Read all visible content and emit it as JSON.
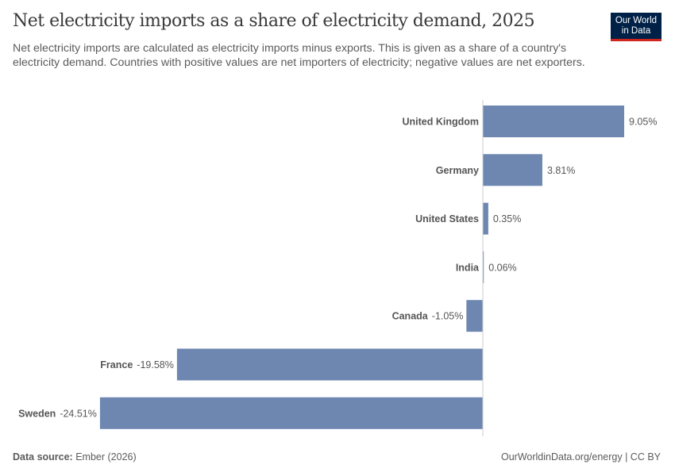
{
  "header": {
    "title": "Net electricity imports as a share of electricity demand, 2025",
    "subtitle": "Net electricity imports are calculated as electricity imports minus exports. This is given as a share of a country's electricity demand. Countries with positive values are net importers of electricity; negative values are net exporters.",
    "logo_line1": "Our World",
    "logo_line2": "in Data"
  },
  "chart_data": {
    "type": "bar",
    "orientation": "horizontal",
    "categories": [
      "United Kingdom",
      "Germany",
      "United States",
      "India",
      "Canada",
      "France",
      "Sweden"
    ],
    "values": [
      9.05,
      3.81,
      0.35,
      0.06,
      -1.05,
      -19.58,
      -24.51
    ],
    "value_labels": [
      "9.05%",
      "3.81%",
      "0.35%",
      "0.06%",
      "-1.05%",
      "-19.58%",
      "-24.51%"
    ],
    "unit": "%",
    "bar_color": "#6d87b1",
    "grid": false
  },
  "footer": {
    "source_label": "Data source:",
    "source_value": "Ember (2026)",
    "url": "OurWorldinData.org/energy | CC BY"
  }
}
